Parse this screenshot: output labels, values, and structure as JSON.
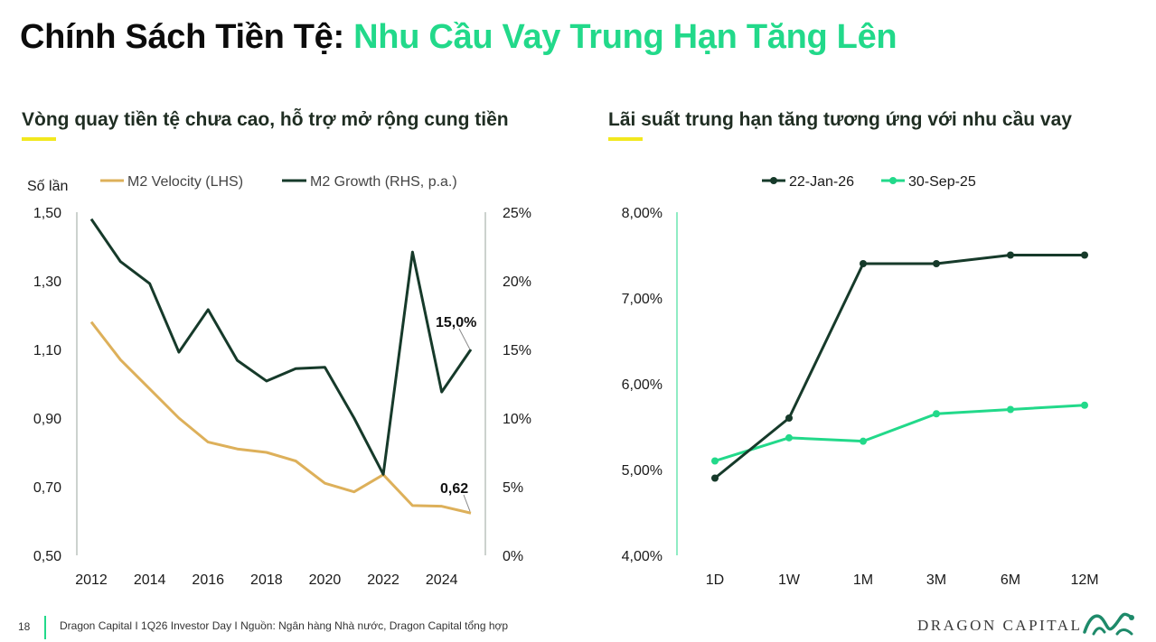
{
  "title": {
    "part1": "Chính Sách Tiền Tệ:",
    "part2": "Nhu Cầu Vay Trung Hạn Tăng Lên"
  },
  "left_panel": {
    "subtitle": "Vòng quay tiền tệ chưa cao, hỗ trợ mở rộng cung tiền"
  },
  "right_panel": {
    "subtitle": "Lãi suất trung hạn tăng tương ứng với nhu cầu vay"
  },
  "colors": {
    "accent_green": "#22d98a",
    "dark_green": "#163a2a",
    "gold": "#ddb05a",
    "yellow": "#f2e81e"
  },
  "chart_data": [
    {
      "type": "line",
      "title": "",
      "ylabel_left": "Số lần",
      "x": [
        2012,
        2013,
        2014,
        2015,
        2016,
        2017,
        2018,
        2019,
        2020,
        2021,
        2022,
        2023,
        2024,
        2025
      ],
      "xticks": [
        "2012",
        "2014",
        "2016",
        "2018",
        "2020",
        "2022",
        "2024"
      ],
      "yticks_left": [
        "1,50",
        "1,30",
        "1,10",
        "0,90",
        "0,70",
        "0,50"
      ],
      "yticks_right": [
        "25%",
        "20%",
        "15%",
        "10%",
        "5%",
        "0%"
      ],
      "ylim_left": [
        0.5,
        1.5
      ],
      "ylim_right": [
        0,
        25
      ],
      "series": [
        {
          "name": "M2 Velocity (LHS)",
          "axis": "left",
          "color": "#ddb05a",
          "values": [
            1.18,
            1.07,
            0.985,
            0.9,
            0.83,
            0.81,
            0.8,
            0.775,
            0.71,
            0.685,
            0.735,
            0.645,
            0.643,
            0.623
          ]
        },
        {
          "name": "M2 Growth (RHS, p.a.)",
          "axis": "right",
          "color": "#163a2a",
          "values": [
            24.5,
            21.4,
            19.8,
            14.8,
            17.9,
            14.2,
            12.7,
            13.6,
            13.7,
            10.0,
            5.9,
            22.1,
            11.9,
            15.0
          ]
        }
      ],
      "annotations": [
        {
          "text": "15,0%",
          "series": "M2 Growth (RHS, p.a.)",
          "x": 2025
        },
        {
          "text": "0,62",
          "series": "M2 Velocity (LHS)",
          "x": 2025
        }
      ]
    },
    {
      "type": "line",
      "title": "",
      "categories": [
        "1D",
        "1W",
        "1M",
        "3M",
        "6M",
        "12M"
      ],
      "yticks": [
        "8,00%",
        "7,00%",
        "6,00%",
        "5,00%",
        "4,00%"
      ],
      "ylim": [
        4.0,
        8.0
      ],
      "series": [
        {
          "name": "22-Jan-26",
          "color": "#163a2a",
          "values": [
            4.9,
            5.6,
            7.4,
            7.4,
            7.5,
            7.5
          ]
        },
        {
          "name": "30-Sep-25",
          "color": "#22d98a",
          "values": [
            5.1,
            5.37,
            5.33,
            5.65,
            5.7,
            5.75
          ]
        }
      ]
    }
  ],
  "footer": {
    "page_number": "18",
    "text": "Dragon Capital I 1Q26 Investor Day I Nguồn: Ngân hàng Nhà nước, Dragon Capital tổng hợp",
    "brand": "DRAGON CAPITAL"
  }
}
